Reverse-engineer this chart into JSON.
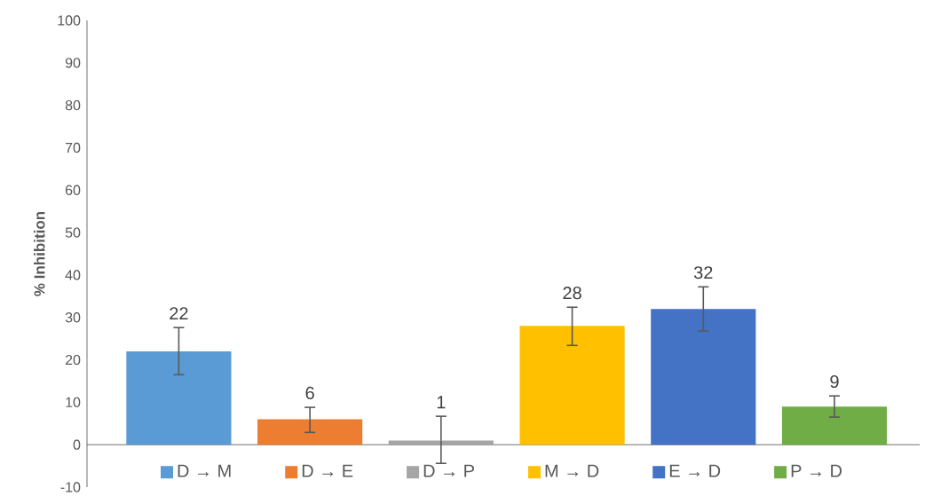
{
  "chart_data": {
    "type": "bar",
    "ylabel": "% Inhibition",
    "categories": [
      null,
      null,
      null,
      null,
      null,
      null
    ],
    "series": [
      {
        "name": "D → M",
        "color": "#5b9bd5",
        "values": [
          22,
          null,
          null,
          null,
          null,
          null
        ],
        "errors": [
          [
            16.5,
            27.6
          ],
          null,
          null,
          null,
          null,
          null
        ]
      },
      {
        "name": "D → E",
        "color": "#ed7d31",
        "values": [
          null,
          6,
          null,
          null,
          null,
          null
        ],
        "errors": [
          null,
          [
            2.9,
            8.8
          ],
          null,
          null,
          null,
          null
        ]
      },
      {
        "name": "D → P",
        "color": "#a5a5a5",
        "values": [
          null,
          null,
          1,
          null,
          null,
          null
        ],
        "errors": [
          null,
          null,
          [
            -4.4,
            6.7
          ],
          null,
          null,
          null
        ]
      },
      {
        "name": "M → D",
        "color": "#ffc000",
        "values": [
          null,
          null,
          null,
          28,
          null,
          null
        ],
        "errors": [
          null,
          null,
          null,
          [
            23.4,
            32.4
          ],
          null,
          null
        ]
      },
      {
        "name": "E → D",
        "color": "#4472c4",
        "values": [
          null,
          null,
          null,
          null,
          32,
          null
        ],
        "errors": [
          null,
          null,
          null,
          null,
          [
            26.8,
            37.2
          ],
          null
        ]
      },
      {
        "name": "P → D",
        "color": "#70ad47",
        "values": [
          null,
          null,
          null,
          null,
          null,
          9
        ],
        "errors": [
          null,
          null,
          null,
          null,
          null,
          [
            6.5,
            11.5
          ]
        ]
      }
    ],
    "ylim": [
      -10,
      100
    ],
    "yticks": [
      -10,
      0,
      10,
      20,
      30,
      40,
      50,
      60,
      70,
      80,
      90,
      100
    ],
    "data_labels": true,
    "legend": "bottom"
  }
}
